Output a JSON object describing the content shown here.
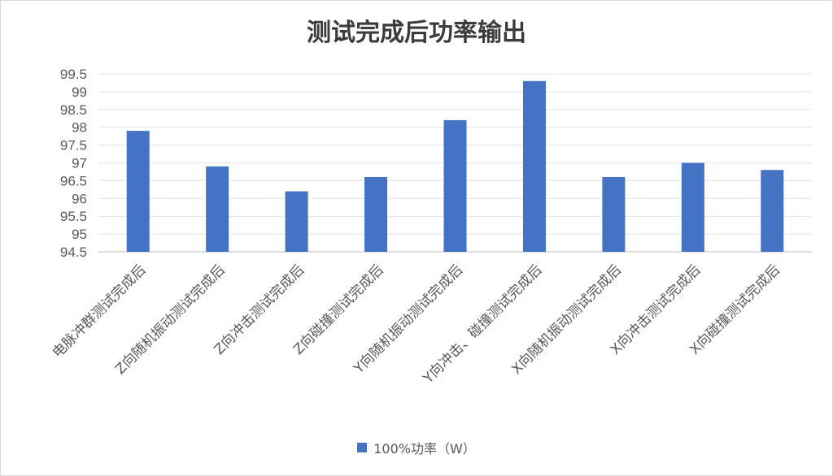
{
  "chart_data": {
    "type": "bar",
    "title": "测试完成后功率输出",
    "categories": [
      "电脉冲群测试完成后",
      "Z向随机振动测试完成后",
      "Z向冲击测试完成后",
      "Z向碰撞测试完成后",
      "Y向随机振动测试完成后",
      "Y向冲击、碰撞测试完成后",
      "X向随机振动测试完成后",
      "X向冲击测试完成后",
      "X向碰撞测试完成后"
    ],
    "series": [
      {
        "name": "100%功率（W）",
        "values": [
          97.9,
          96.9,
          96.2,
          96.6,
          98.2,
          99.3,
          96.6,
          97.0,
          96.8
        ]
      }
    ],
    "ylim": [
      94.5,
      99.5
    ],
    "yticks": [
      "94.5",
      "95",
      "95.5",
      "96",
      "96.5",
      "97",
      "97.5",
      "98",
      "98.5",
      "99",
      "99.5"
    ],
    "grid": true,
    "legend_position": "bottom",
    "bar_color": "#4472c4"
  }
}
